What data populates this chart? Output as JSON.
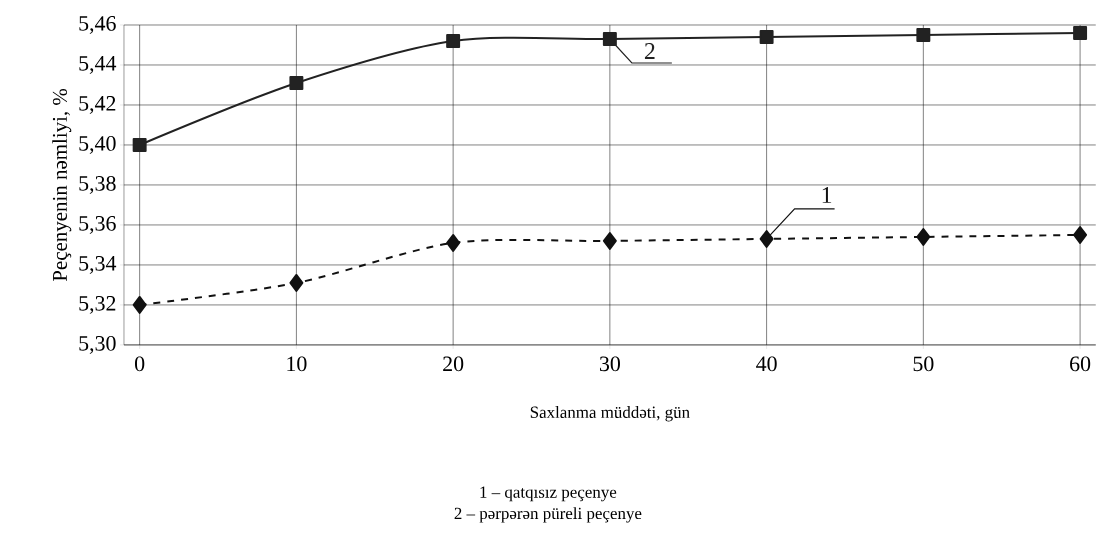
{
  "chart_data": {
    "type": "line",
    "xlabel": "Saxlanma müddəti, gün",
    "ylabel": "Peçenyenin nəmliyi, %",
    "x": [
      0,
      10,
      20,
      30,
      40,
      50,
      60
    ],
    "series": [
      {
        "name": "1",
        "color": "#111111",
        "marker": "diamond",
        "line_style": "dashed",
        "values": [
          5.32,
          5.331,
          5.351,
          5.352,
          5.353,
          5.354,
          5.355
        ]
      },
      {
        "name": "2",
        "color": "#222222",
        "marker": "square",
        "line_style": "solid",
        "values": [
          5.4,
          5.431,
          5.452,
          5.453,
          5.454,
          5.455,
          5.456
        ]
      }
    ],
    "xlim": [
      -1,
      61
    ],
    "ylim": [
      5.3,
      5.46
    ],
    "xticks": [
      0,
      10,
      20,
      30,
      40,
      50,
      60
    ],
    "yticks": [
      {
        "value": 5.3,
        "label": "5,30"
      },
      {
        "value": 5.32,
        "label": "5,32"
      },
      {
        "value": 5.34,
        "label": "5,34"
      },
      {
        "value": 5.36,
        "label": "5,36"
      },
      {
        "value": 5.38,
        "label": "5,38"
      },
      {
        "value": 5.4,
        "label": "5,40"
      },
      {
        "value": 5.42,
        "label": "5,42"
      },
      {
        "value": 5.44,
        "label": "5,44"
      },
      {
        "value": 5.46,
        "label": "5,46"
      }
    ],
    "grid": true,
    "annotations": [
      "1 – qatqısız peçenye",
      "2 – pərpərən püreli peçenye"
    ]
  }
}
